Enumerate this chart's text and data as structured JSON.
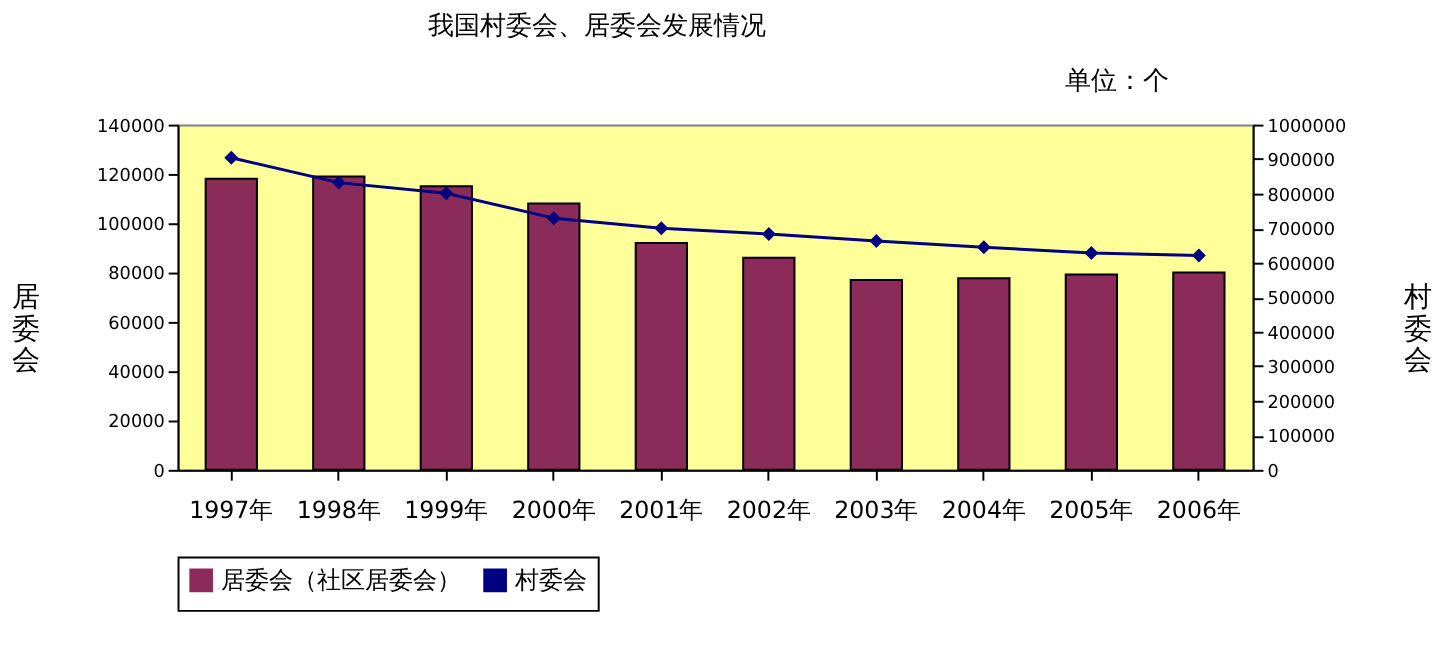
{
  "chart_data": {
    "type": "bar",
    "title": "我国村委会、居委会发展情况",
    "annotations": [
      "单位：个"
    ],
    "ylabel": "居委会",
    "y2label": "村委会",
    "categories": [
      "1997年",
      "1998年",
      "1999年",
      "2000年",
      "2001年",
      "2002年",
      "2003年",
      "2004年",
      "2005年",
      "2006年"
    ],
    "series": [
      {
        "name": "居委会（社区居委会）",
        "color": "#8b2b5a",
        "values": [
          118000,
          119000,
          115000,
          108000,
          92000,
          86000,
          77000,
          77700,
          79200,
          80000
        ]
      },
      {
        "name": "村委会",
        "color": "#000080",
        "type": "line",
        "axis": "y2",
        "marker": "diamond",
        "values": [
          904000,
          832000,
          801000,
          729000,
          700000,
          683000,
          663000,
          645000,
          628000,
          621000
        ]
      }
    ],
    "ylim": [
      0,
      140000
    ],
    "yticks": [
      0,
      20000,
      40000,
      60000,
      80000,
      100000,
      120000,
      140000
    ],
    "y2lim": [
      0,
      1000000
    ],
    "y2ticks": [
      0,
      100000,
      200000,
      300000,
      400000,
      500000,
      600000,
      700000,
      800000,
      900000,
      1000000
    ],
    "grid": false,
    "legend": "bottom"
  }
}
